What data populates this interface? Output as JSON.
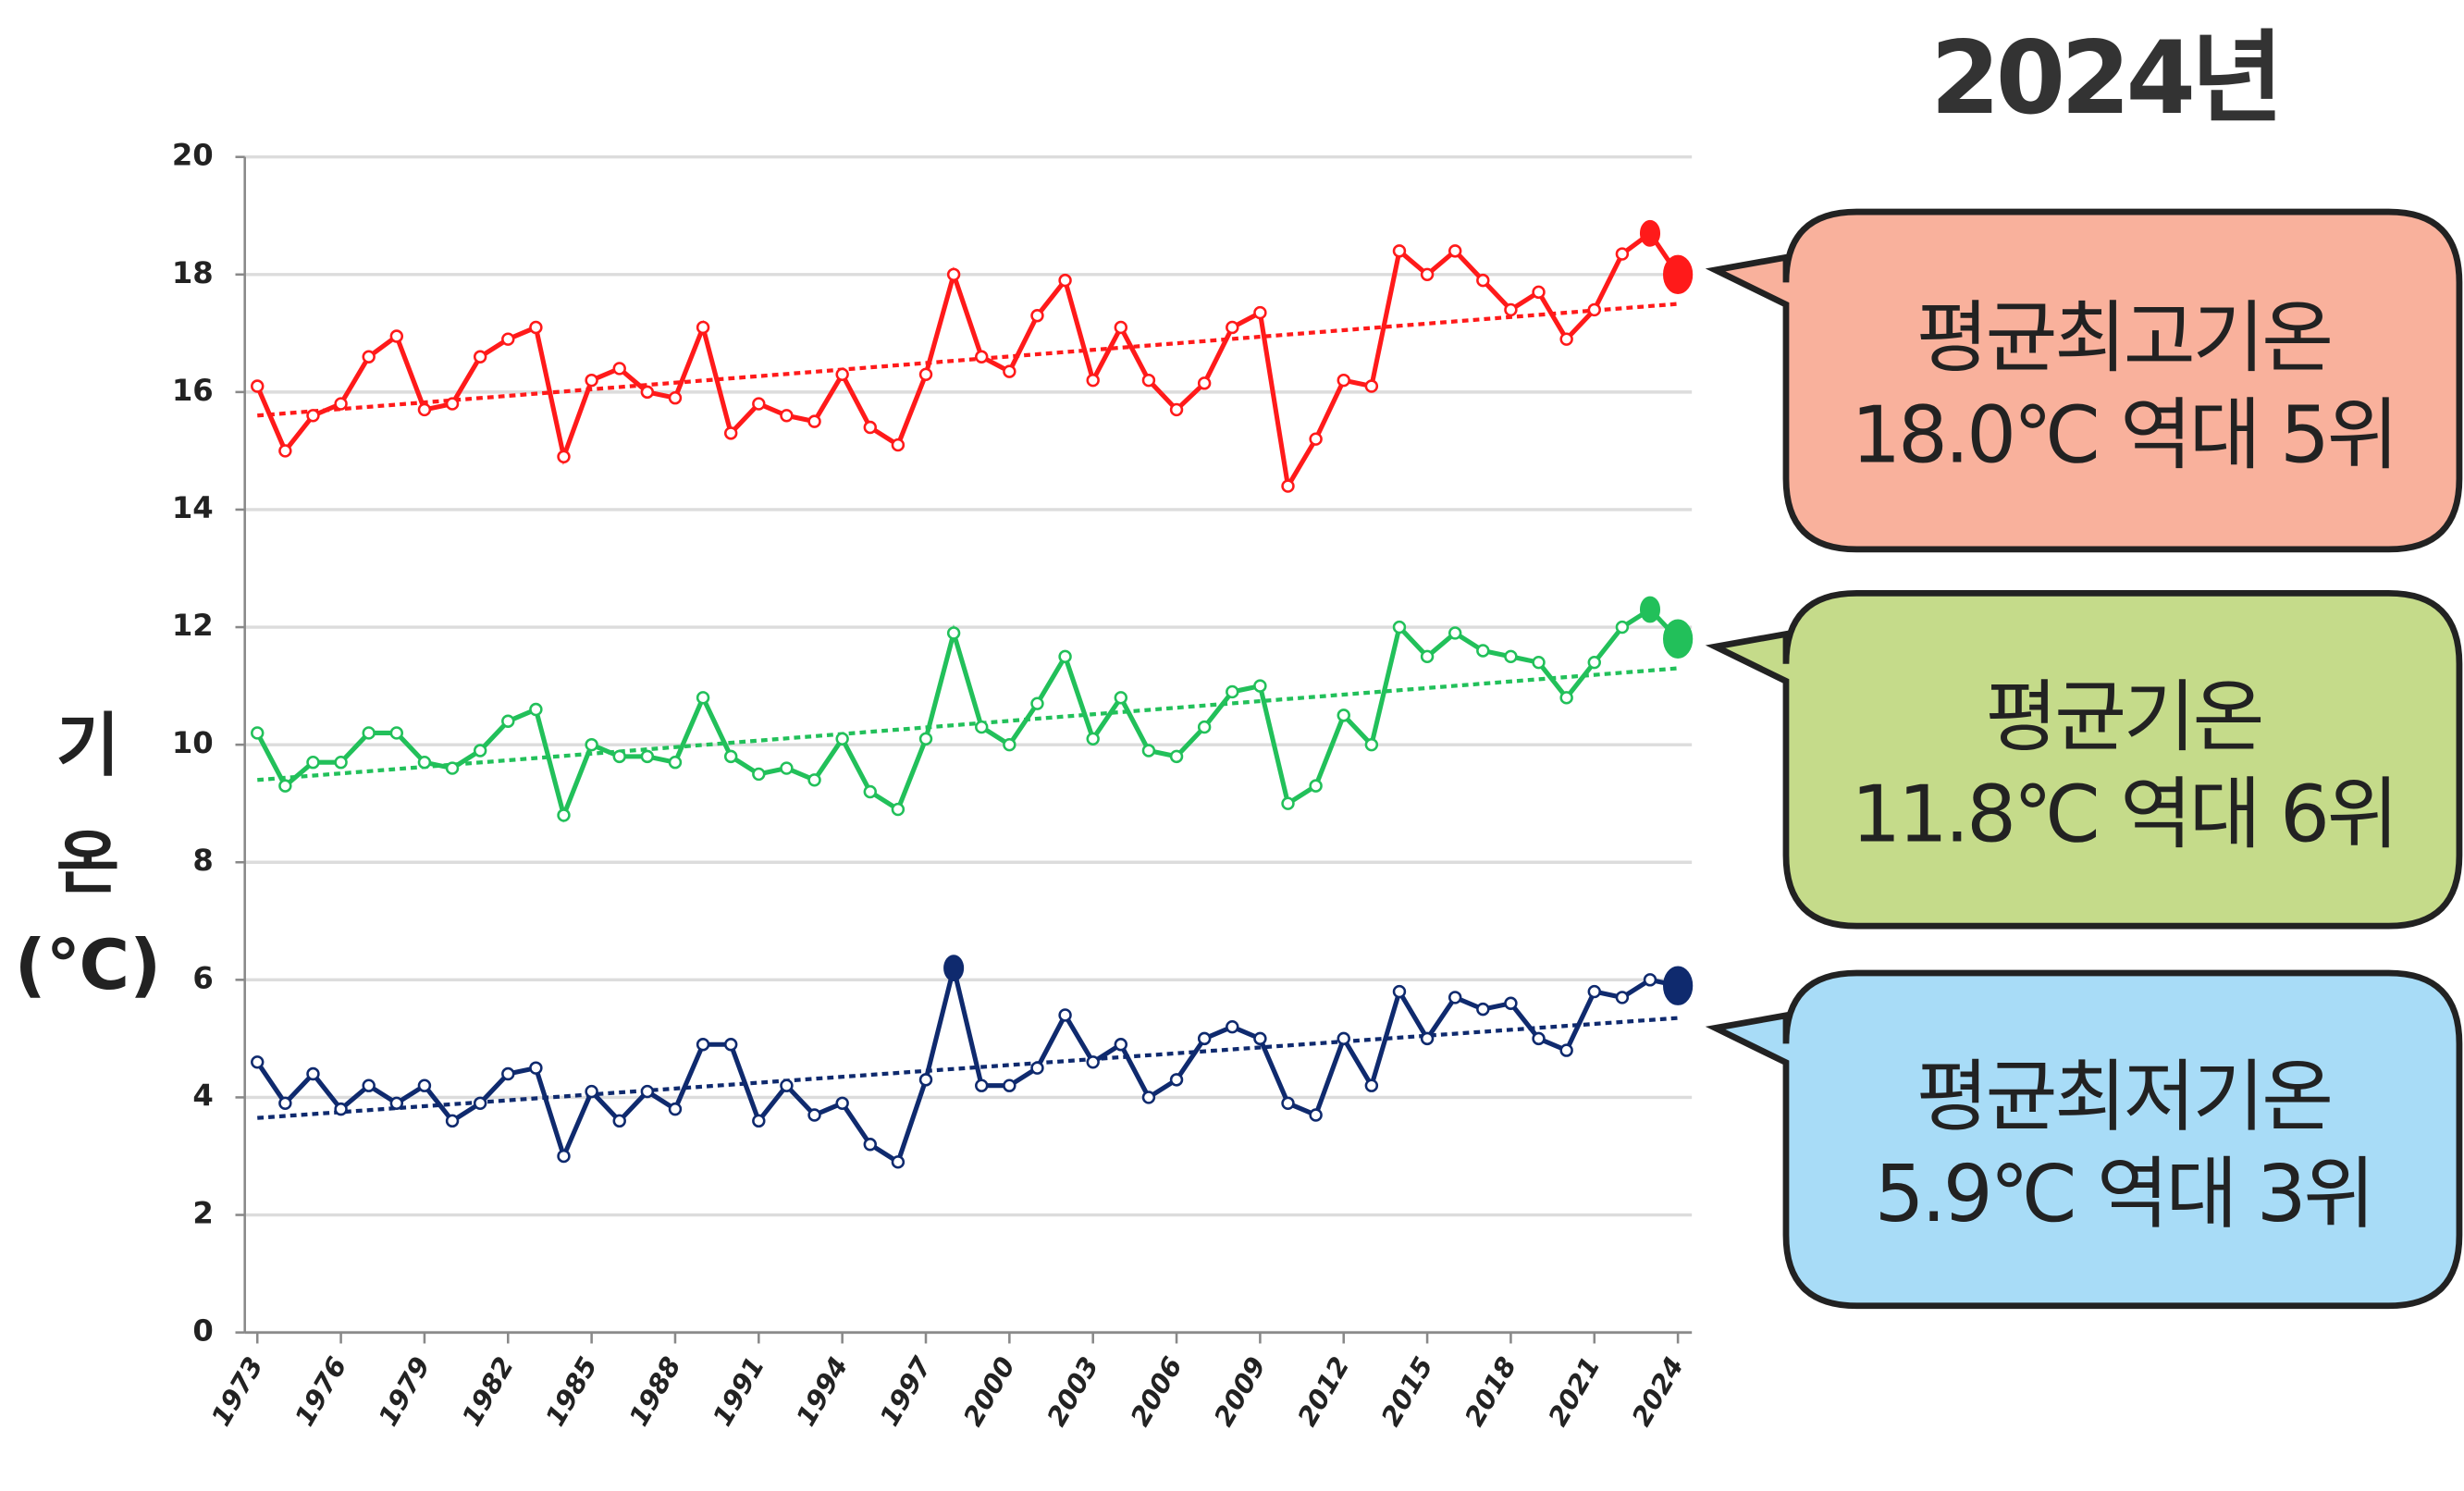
{
  "chart_data": {
    "type": "line",
    "title": "2024년",
    "ylabel_lines": [
      "기",
      "온",
      "(℃)"
    ],
    "x": [
      1973,
      1974,
      1975,
      1976,
      1977,
      1978,
      1979,
      1980,
      1981,
      1982,
      1983,
      1984,
      1985,
      1986,
      1987,
      1988,
      1989,
      1990,
      1991,
      1992,
      1993,
      1994,
      1995,
      1996,
      1997,
      1998,
      1999,
      2000,
      2001,
      2002,
      2003,
      2004,
      2005,
      2006,
      2007,
      2008,
      2009,
      2010,
      2011,
      2012,
      2013,
      2014,
      2015,
      2016,
      2017,
      2018,
      2019,
      2020,
      2021,
      2022,
      2023,
      2024
    ],
    "xlim": [
      1972.55,
      2024.5
    ],
    "xticks": [
      1973,
      1976,
      1979,
      1982,
      1985,
      1988,
      1991,
      1994,
      1997,
      2000,
      2003,
      2006,
      2009,
      2012,
      2015,
      2018,
      2021,
      2024
    ],
    "ylim": [
      0,
      20
    ],
    "yticks": [
      0,
      2,
      4,
      6,
      8,
      10,
      12,
      14,
      16,
      18,
      20
    ],
    "grid": true,
    "series": [
      {
        "name": "평균최고기온",
        "color": "#ff1a1a",
        "filled_points": [
          50
        ],
        "values": [
          16.1,
          15.0,
          15.6,
          15.8,
          16.6,
          16.95,
          15.7,
          15.8,
          16.6,
          16.9,
          17.1,
          14.9,
          16.2,
          16.4,
          16.0,
          15.9,
          17.1,
          15.3,
          15.8,
          15.6,
          15.5,
          16.3,
          15.4,
          15.1,
          16.3,
          18.0,
          16.6,
          16.35,
          17.3,
          17.9,
          16.2,
          17.1,
          16.2,
          15.7,
          16.15,
          17.1,
          17.35,
          14.4,
          15.2,
          16.2,
          16.1,
          18.4,
          18.0,
          18.4,
          17.9,
          17.4,
          17.7,
          16.9,
          17.4,
          18.35,
          18.7,
          18.0
        ],
        "trend": [
          15.6,
          17.5
        ]
      },
      {
        "name": "평균기온",
        "color": "#22c05a",
        "filled_points": [
          50
        ],
        "values": [
          10.2,
          9.3,
          9.7,
          9.7,
          10.2,
          10.2,
          9.7,
          9.6,
          9.9,
          10.4,
          10.6,
          8.8,
          10.0,
          9.8,
          9.8,
          9.7,
          10.8,
          9.8,
          9.5,
          9.6,
          9.4,
          10.1,
          9.2,
          8.9,
          10.1,
          11.9,
          10.3,
          10.0,
          10.7,
          11.5,
          10.1,
          10.8,
          9.9,
          9.8,
          10.3,
          10.9,
          11.0,
          9.0,
          9.3,
          10.5,
          10.0,
          12.0,
          11.5,
          11.9,
          11.6,
          11.5,
          11.4,
          10.8,
          11.4,
          12.0,
          12.3,
          11.8
        ],
        "trend": [
          9.4,
          11.3
        ]
      },
      {
        "name": "평균최저기온",
        "color": "#0f2a6e",
        "filled_points": [
          25
        ],
        "values": [
          4.6,
          3.9,
          4.4,
          3.8,
          4.2,
          3.9,
          4.2,
          3.6,
          3.9,
          4.4,
          4.5,
          3.0,
          4.1,
          3.6,
          4.1,
          3.8,
          4.9,
          4.9,
          3.6,
          4.2,
          3.7,
          3.9,
          3.2,
          2.9,
          4.3,
          6.2,
          4.2,
          4.2,
          4.5,
          5.4,
          4.6,
          4.9,
          4.0,
          4.3,
          5.0,
          5.2,
          5.0,
          3.9,
          3.7,
          5.0,
          4.2,
          5.8,
          5.0,
          5.7,
          5.5,
          5.6,
          5.0,
          4.8,
          5.8,
          5.7,
          6.0,
          5.9
        ],
        "trend": [
          3.65,
          5.35
        ]
      }
    ],
    "callouts": [
      {
        "title": "평균최고기온",
        "text": "18.0℃ 역대 5위",
        "color": "#f9b19c"
      },
      {
        "title": "평균기온",
        "text": "11.8℃ 역대 6위",
        "color": "#c5db8a"
      },
      {
        "title": "평균최저기온",
        "text": "5.9℃ 역대 3위",
        "color": "#a8dcf7"
      }
    ]
  }
}
